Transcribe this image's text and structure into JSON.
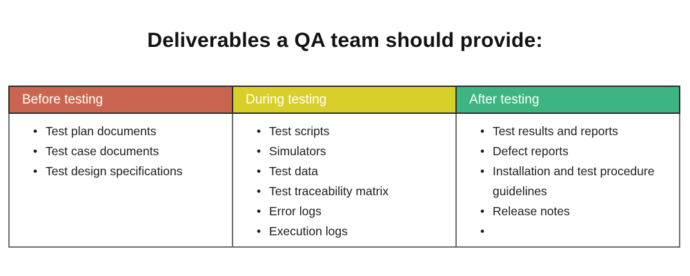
{
  "title": "Deliverables a QA team should provide:",
  "colors": {
    "before_header_bg": "#ca664f",
    "during_header_bg": "#d8cf2a",
    "after_header_bg": "#3cb581",
    "header_text": "#ffffff",
    "body_text": "#1d1d1d",
    "header_border": "#2e2e2e",
    "body_border": "#6f6f6f"
  },
  "bullet_glyph": "•",
  "table": {
    "columns": [
      {
        "header": "Before testing",
        "items": [
          "Test plan documents",
          "Test case documents",
          "Test design specifications"
        ]
      },
      {
        "header": "During testing",
        "items": [
          "Test scripts",
          "Simulators",
          "Test data",
          "Test traceability matrix",
          "Error logs",
          "Execution logs"
        ]
      },
      {
        "header": "After testing",
        "items": [
          "Test results and reports",
          "Defect reports",
          "Installation and test procedure guidelines",
          "Release notes",
          ""
        ]
      }
    ]
  }
}
